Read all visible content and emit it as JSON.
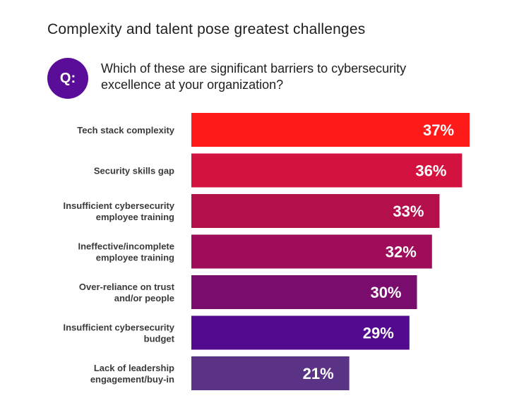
{
  "title": "Complexity and talent pose greatest challenges",
  "question": {
    "badge": "Q:",
    "text": "Which of these are significant barriers to cybersecurity excellence at your organization?"
  },
  "chart_data": {
    "type": "bar",
    "orientation": "horizontal",
    "categories": [
      [
        "Tech stack complexity"
      ],
      [
        "Security skills gap"
      ],
      [
        "Insufficient cybersecurity",
        "employee training"
      ],
      [
        "Ineffective/incomplete",
        "employee training"
      ],
      [
        "Over-reliance on trust",
        "and/or people"
      ],
      [
        "Insufficient cybersecurity",
        "budget"
      ],
      [
        "Lack of leadership",
        "engagement/buy-in"
      ]
    ],
    "values": [
      37,
      36,
      33,
      32,
      30,
      29,
      21
    ],
    "value_labels": [
      "37%",
      "36%",
      "33%",
      "32%",
      "30%",
      "29%",
      "21%"
    ],
    "colors": [
      "#ff1a1a",
      "#d4123f",
      "#b3104a",
      "#9e0c5a",
      "#7a0c6e",
      "#520a8f",
      "#5a3387"
    ],
    "grid": false,
    "legend": false
  }
}
